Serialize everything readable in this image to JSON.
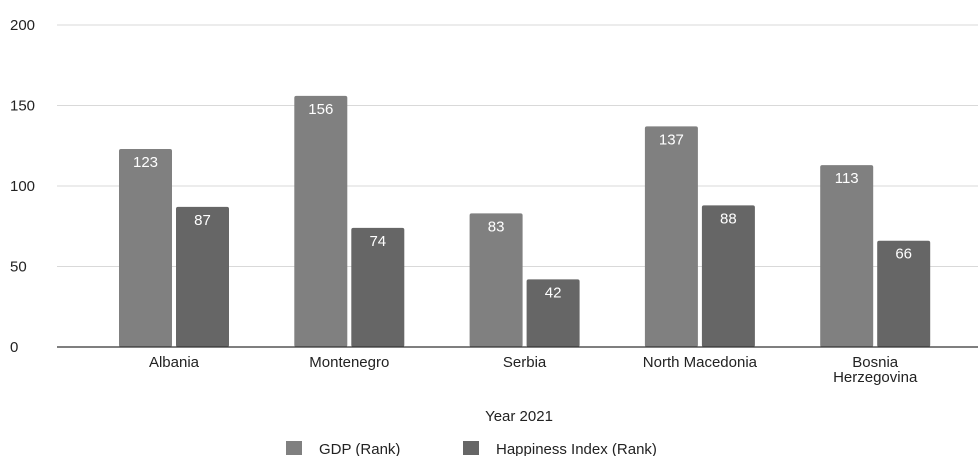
{
  "chart_data": {
    "type": "bar",
    "title": "",
    "xlabel": "Year 2021",
    "ylabel": "",
    "ylim": [
      0,
      200
    ],
    "yticks": [
      0,
      50,
      100,
      150,
      200
    ],
    "grid": true,
    "legend_position": "bottom",
    "categories": [
      [
        "Albania"
      ],
      [
        "Montenegro"
      ],
      [
        "Serbia"
      ],
      [
        "North Macedonia"
      ],
      [
        "Bosnia",
        "Herzegovina"
      ]
    ],
    "series": [
      {
        "name": "GDP (Rank)",
        "color": "#808080",
        "values": [
          123,
          156,
          83,
          137,
          113
        ]
      },
      {
        "name": "Happiness Index (Rank)",
        "color": "#666666",
        "values": [
          87,
          74,
          42,
          88,
          66
        ]
      }
    ]
  }
}
